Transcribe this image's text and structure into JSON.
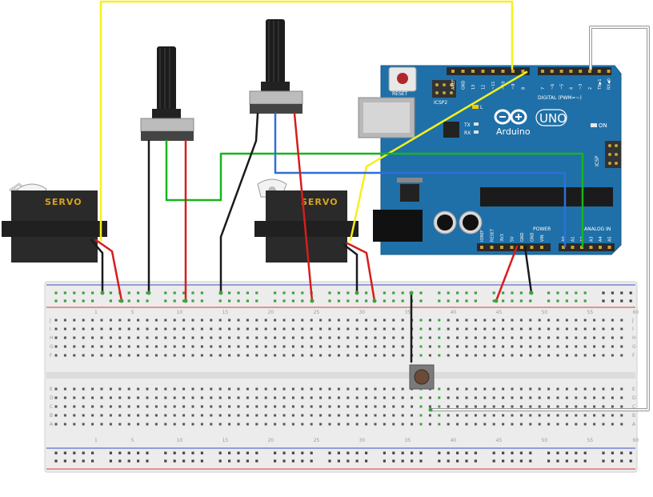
{
  "colors": {
    "board": "#1f70a8",
    "board_dark": "#175a88",
    "breadboard": "#ececec",
    "wire_yellow": "#f7f01c",
    "wire_green": "#18b41e",
    "wire_red": "#d71d1d",
    "wire_black": "#1a1a1a",
    "wire_blue": "#2f6fd6",
    "wire_gray": "#9a9a9a",
    "servo_body": "#2a2a2a",
    "servo_label": "#d9a21c",
    "rail_red": "#d23a3a",
    "rail_blue": "#3a4fc8",
    "hole_green": "#3ca33c"
  },
  "servo_left": {
    "label": "SERVO"
  },
  "servo_right": {
    "label": "SERVO"
  },
  "arduino": {
    "reset_label": "RESET",
    "icsp2_label": "ICSP2",
    "brand": "Arduino",
    "model": "UNO",
    "on_label": "ON",
    "tx_label": "TX",
    "rx_label": "RX",
    "l_label": "L",
    "icsp_label": "ICSP",
    "digital_label": "DIGITAL (PWM=~)",
    "analog_label": "ANALOG IN",
    "power_label": "POWER",
    "top_pins": [
      "AREF",
      "GND",
      "13",
      "12",
      "~11",
      "~10",
      "~9",
      "8"
    ],
    "top_pins2": [
      "7",
      "~6",
      "~5",
      "4",
      "~3",
      "2",
      "TX▶1",
      "RX◀0"
    ],
    "power_pins": [
      "IOREF",
      "RESET",
      "3V3",
      "5V",
      "GND",
      "GND",
      "VIN"
    ],
    "analog_pins": [
      "A0",
      "A1",
      "A2",
      "A3",
      "A4",
      "A5"
    ]
  },
  "breadboard": {
    "column_numbers": [
      "1",
      "5",
      "10",
      "15",
      "20",
      "25",
      "30",
      "35",
      "40",
      "45",
      "50",
      "55",
      "60"
    ],
    "row_letters_top": [
      "J",
      "I",
      "H",
      "G",
      "F"
    ],
    "row_letters_bottom": [
      "E",
      "D",
      "C",
      "B",
      "A"
    ]
  }
}
